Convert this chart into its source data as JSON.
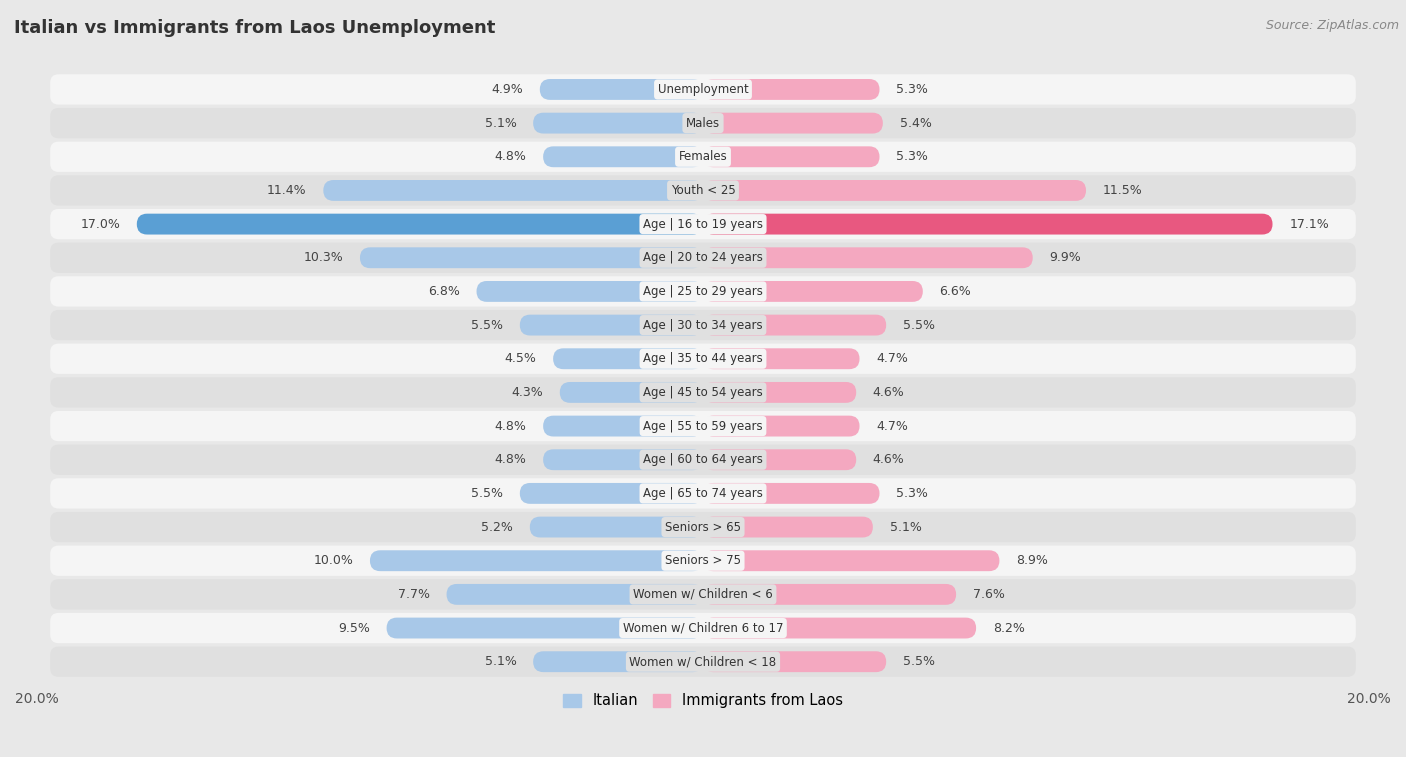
{
  "title": "Italian vs Immigrants from Laos Unemployment",
  "source": "Source: ZipAtlas.com",
  "categories": [
    "Unemployment",
    "Males",
    "Females",
    "Youth < 25",
    "Age | 16 to 19 years",
    "Age | 20 to 24 years",
    "Age | 25 to 29 years",
    "Age | 30 to 34 years",
    "Age | 35 to 44 years",
    "Age | 45 to 54 years",
    "Age | 55 to 59 years",
    "Age | 60 to 64 years",
    "Age | 65 to 74 years",
    "Seniors > 65",
    "Seniors > 75",
    "Women w/ Children < 6",
    "Women w/ Children 6 to 17",
    "Women w/ Children < 18"
  ],
  "italian": [
    4.9,
    5.1,
    4.8,
    11.4,
    17.0,
    10.3,
    6.8,
    5.5,
    4.5,
    4.3,
    4.8,
    4.8,
    5.5,
    5.2,
    10.0,
    7.7,
    9.5,
    5.1
  ],
  "laos": [
    5.3,
    5.4,
    5.3,
    11.5,
    17.1,
    9.9,
    6.6,
    5.5,
    4.7,
    4.6,
    4.7,
    4.6,
    5.3,
    5.1,
    8.9,
    7.6,
    8.2,
    5.5
  ],
  "italian_color": "#a8c8e8",
  "laos_color": "#f4a8c0",
  "highlight_italian_color": "#5a9fd4",
  "highlight_laos_color": "#e85880",
  "axis_max": 20.0,
  "background_color": "#e8e8e8",
  "row_bg_white": "#f5f5f5",
  "row_bg_gray": "#e0e0e0",
  "bar_height": 0.62,
  "legend_italian": "Italian",
  "legend_laos": "Immigrants from Laos"
}
